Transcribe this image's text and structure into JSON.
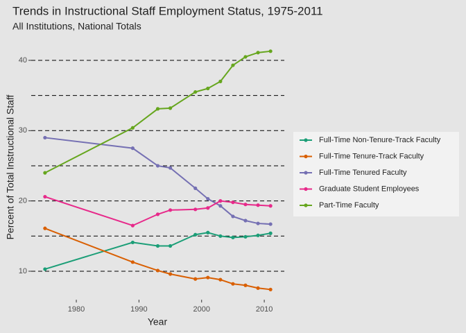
{
  "chart_data": {
    "type": "line",
    "title": "Trends in Instructional Staff Employment Status, 1975-2011",
    "subtitle": "All Institutions, National Totals",
    "x_label": "Year",
    "y_label": "Percent of Total Instructional Staff",
    "x": [
      1975,
      1989,
      1993,
      1995,
      1999,
      2001,
      2003,
      2005,
      2007,
      2009,
      2011
    ],
    "series": [
      {
        "name": "Full-Time Non-Tenure-Track Faculty",
        "color": "#1b9e77",
        "values": [
          10.3,
          14.1,
          13.6,
          13.6,
          15.2,
          15.5,
          15.0,
          14.8,
          14.9,
          15.1,
          15.4
        ]
      },
      {
        "name": "Full-Time Tenure-Track Faculty",
        "color": "#d95f02",
        "values": [
          16.1,
          11.3,
          10.1,
          9.6,
          8.9,
          9.1,
          8.8,
          8.2,
          8.0,
          7.6,
          7.4
        ]
      },
      {
        "name": "Full-Time Tenured Faculty",
        "color": "#7570b3",
        "values": [
          29.0,
          27.5,
          25.0,
          24.7,
          21.8,
          20.3,
          19.3,
          17.8,
          17.2,
          16.8,
          16.7
        ]
      },
      {
        "name": "Graduate Student Employees",
        "color": "#e7298a",
        "values": [
          20.6,
          16.5,
          18.1,
          18.7,
          18.8,
          19.0,
          20.0,
          19.8,
          19.5,
          19.4,
          19.3
        ]
      },
      {
        "name": "Part-Time Faculty",
        "color": "#66a61e",
        "values": [
          24.0,
          30.4,
          33.1,
          33.2,
          35.5,
          36.0,
          37.0,
          39.3,
          40.5,
          41.1,
          41.3
        ]
      }
    ],
    "xlim": [
      1972.8,
      2013.2
    ],
    "ylim": [
      5.95,
      43.65
    ],
    "xticks": [
      1980,
      1990,
      2000,
      2010
    ],
    "yticks": [
      10,
      20,
      30,
      40
    ],
    "y_grid_lines": [
      10,
      15,
      20,
      25,
      30,
      35,
      40
    ],
    "grid_style": "dashed",
    "legend_position": "right"
  }
}
